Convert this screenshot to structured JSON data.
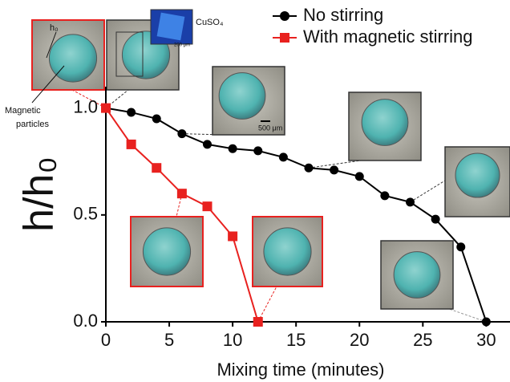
{
  "chart_data": {
    "type": "line",
    "xlabel": "Mixing time (minutes)",
    "ylabel": "h/h₀",
    "series": [
      {
        "name": "No stirring",
        "color": "#000000",
        "marker": "circle",
        "x": [
          0,
          2,
          4,
          6,
          8,
          10,
          12,
          14,
          16,
          18,
          20,
          22,
          24,
          26,
          28,
          30
        ],
        "values": [
          1.0,
          0.98,
          0.95,
          0.88,
          0.83,
          0.81,
          0.8,
          0.77,
          0.72,
          0.71,
          0.68,
          0.59,
          0.56,
          0.48,
          0.35,
          0.0
        ]
      },
      {
        "name": "With magnetic stirring",
        "color": "#e8211f",
        "marker": "square",
        "x": [
          0,
          2,
          4,
          6,
          8,
          10,
          12
        ],
        "values": [
          1.0,
          0.83,
          0.72,
          0.6,
          0.54,
          0.4,
          0.0
        ]
      }
    ],
    "xlim": [
      0,
      32
    ],
    "xticks": [
      0,
      5,
      10,
      15,
      20,
      25,
      30
    ],
    "ylim": [
      0,
      1.1
    ],
    "yticks": [
      {
        "value": 0,
        "label": "0.0"
      },
      {
        "value": 0.5,
        "label": "0.5"
      },
      {
        "value": 1,
        "label": "1.0"
      }
    ],
    "legend": "upper right",
    "annotations": {
      "h0": "h₀",
      "cuso4": "CuSO₄",
      "particles": "Magnetic particles",
      "scale_small": "200 μm",
      "scale_large": "500 μm"
    }
  }
}
